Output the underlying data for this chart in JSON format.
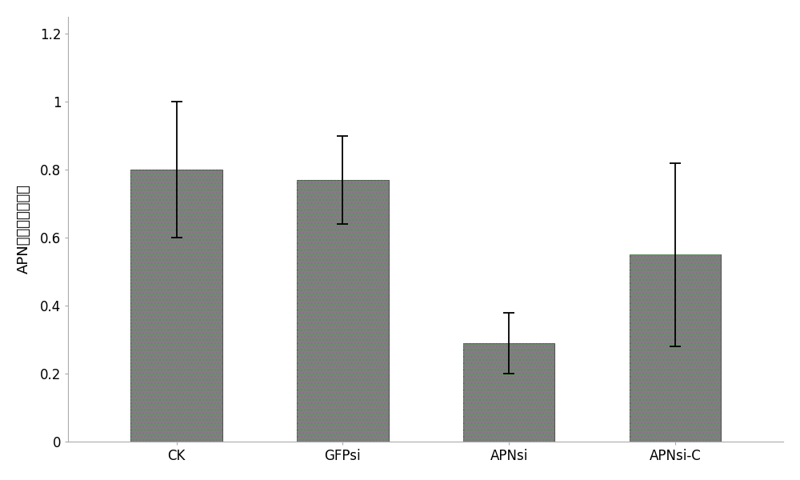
{
  "categories": [
    "CK",
    "GFPsi",
    "APNsi",
    "APNsi-C"
  ],
  "values": [
    0.8,
    0.77,
    0.29,
    0.55
  ],
  "errors_upper": [
    0.2,
    0.13,
    0.09,
    0.27
  ],
  "errors_lower": [
    0.2,
    0.13,
    0.09,
    0.27
  ],
  "bar_facecolor": "#9a8a9a",
  "bar_edgecolor": "#555555",
  "hatch_green": "#5a8a5a",
  "hatch_purple": "#8a5a8a",
  "ylabel": "APN基因相对表达量",
  "xlabel": "",
  "ylim": [
    0,
    1.25
  ],
  "yticks": [
    0,
    0.2,
    0.4,
    0.6,
    0.8,
    1.0,
    1.2
  ],
  "ytick_labels": [
    "0",
    "0.2",
    "0.4",
    "0.6",
    "0.8",
    "1",
    "1.2"
  ],
  "bar_width": 0.55,
  "error_capsize": 5,
  "background_color": "#ffffff",
  "ylabel_fontsize": 13,
  "tick_fontsize": 12,
  "spine_color": "#aaaaaa"
}
